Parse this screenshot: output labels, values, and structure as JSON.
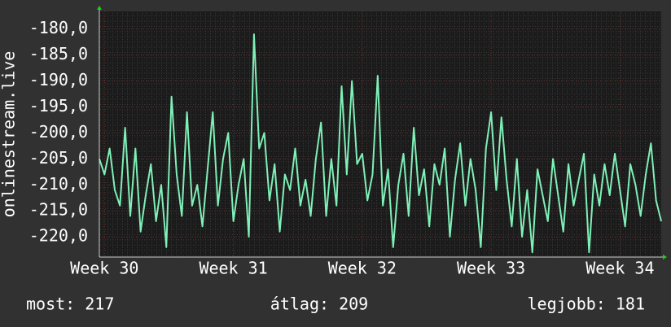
{
  "chart_data": {
    "type": "line",
    "ylabel": "onlinestream.live",
    "xlim": [
      29.96,
      34.32
    ],
    "xticks": [
      {
        "value": 30,
        "label": "Week 30"
      },
      {
        "value": 31,
        "label": "Week 31"
      },
      {
        "value": 32,
        "label": "Week 32"
      },
      {
        "value": 33,
        "label": "Week 33"
      },
      {
        "value": 34,
        "label": "Week 34"
      }
    ],
    "ylim": [
      -223.9,
      -176.6
    ],
    "yticks": [
      {
        "value": -180,
        "label": "-180,0"
      },
      {
        "value": -185,
        "label": "-185,0"
      },
      {
        "value": -190,
        "label": "-190,0"
      },
      {
        "value": -195,
        "label": "-195,0"
      },
      {
        "value": -200,
        "label": "-200,0"
      },
      {
        "value": -205,
        "label": "-205,0"
      },
      {
        "value": -210,
        "label": "-210,0"
      },
      {
        "value": -215,
        "label": "-215,0"
      },
      {
        "value": -220,
        "label": "-220,0"
      }
    ],
    "grid": true,
    "x": [
      29.96,
      30.0,
      30.04,
      30.08,
      30.12,
      30.16,
      30.2,
      30.24,
      30.28,
      30.32,
      30.36,
      30.4,
      30.44,
      30.48,
      30.52,
      30.56,
      30.6,
      30.64,
      30.68,
      30.72,
      30.76,
      30.8,
      30.84,
      30.88,
      30.92,
      30.96,
      31.0,
      31.04,
      31.08,
      31.12,
      31.16,
      31.2,
      31.24,
      31.28,
      31.32,
      31.36,
      31.4,
      31.44,
      31.48,
      31.52,
      31.56,
      31.6,
      31.64,
      31.68,
      31.72,
      31.76,
      31.8,
      31.84,
      31.88,
      31.92,
      31.96,
      32.0,
      32.04,
      32.08,
      32.12,
      32.16,
      32.2,
      32.24,
      32.28,
      32.32,
      32.36,
      32.4,
      32.44,
      32.48,
      32.52,
      32.56,
      32.6,
      32.64,
      32.68,
      32.72,
      32.76,
      32.8,
      32.84,
      32.88,
      32.92,
      32.96,
      33.0,
      33.04,
      33.08,
      33.12,
      33.16,
      33.2,
      33.24,
      33.28,
      33.32,
      33.36,
      33.4,
      33.44,
      33.48,
      33.52,
      33.56,
      33.6,
      33.64,
      33.68,
      33.72,
      33.76,
      33.8,
      33.84,
      33.88,
      33.92,
      33.96,
      34.0,
      34.04,
      34.08,
      34.12,
      34.16,
      34.2,
      34.24,
      34.28,
      34.32
    ],
    "series": [
      {
        "color": "#7ff0b8",
        "values": [
          -205,
          -208,
          -203,
          -211,
          -214,
          -199,
          -216,
          -203,
          -219,
          -212,
          -206,
          -217,
          -210,
          -222,
          -193,
          -208,
          -216,
          -196,
          -214,
          -210,
          -218,
          -207,
          -196,
          -214,
          -205,
          -200,
          -217,
          -210,
          -205,
          -220,
          -181,
          -203,
          -200,
          -213,
          -206,
          -219,
          -208,
          -211,
          -203,
          -214,
          -209,
          -216,
          -205,
          -198,
          -216,
          -205,
          -214,
          -191,
          -208,
          -190,
          -206,
          -204,
          -213,
          -208,
          -189,
          -214,
          -207,
          -222,
          -210,
          -204,
          -216,
          -199,
          -212,
          -207,
          -218,
          -206,
          -210,
          -203,
          -220,
          -209,
          -202,
          -214,
          -205,
          -211,
          -222,
          -203,
          -196,
          -211,
          -197,
          -209,
          -218,
          -205,
          -220,
          -211,
          -223,
          -207,
          -212,
          -217,
          -205,
          -212,
          -219,
          -206,
          -214,
          -209,
          -204,
          -223,
          -208,
          -214,
          -206,
          -212,
          -204,
          -211,
          -218,
          -206,
          -210,
          -216,
          -208,
          -202,
          -213,
          -217
        ]
      }
    ],
    "stats": [
      "most: 217",
      "átlag: 209",
      "legjobb: 181"
    ]
  }
}
